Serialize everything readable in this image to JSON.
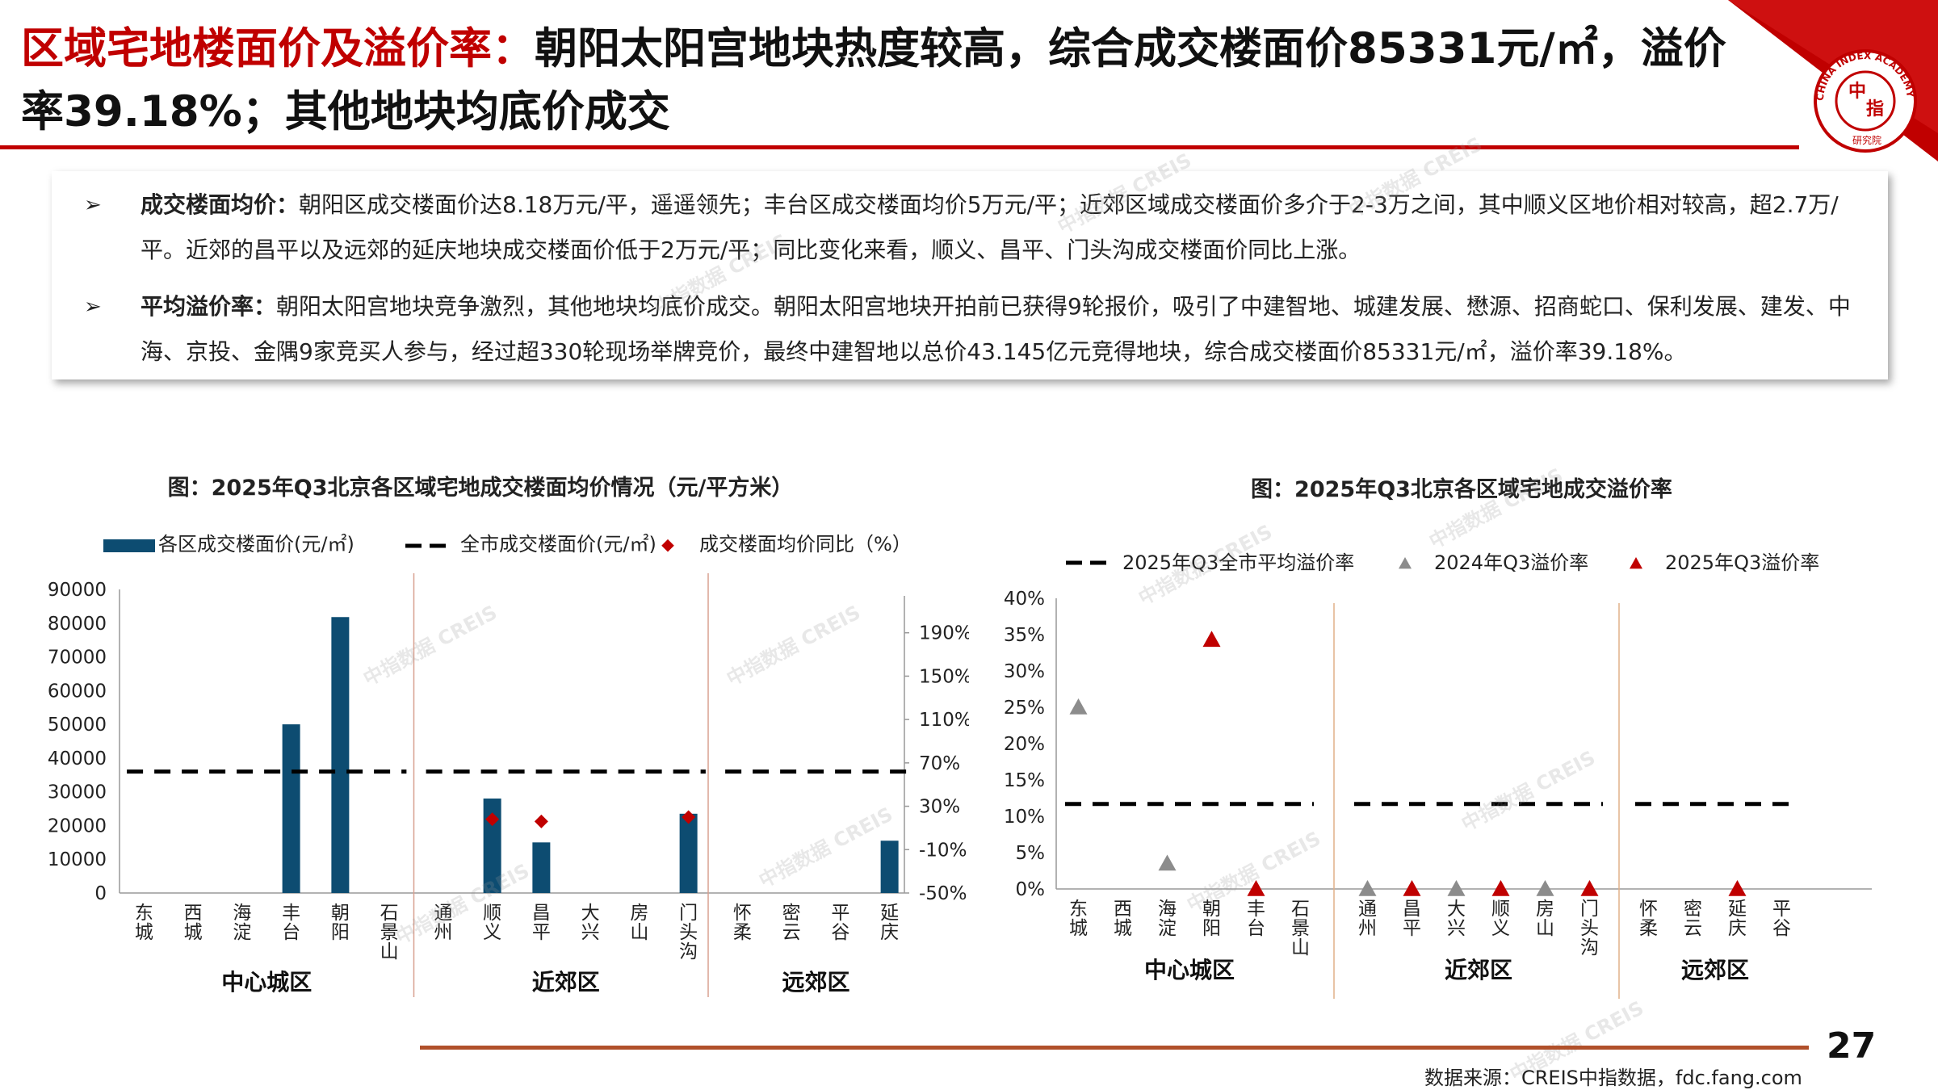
{
  "header": {
    "title_red": "区域宅地楼面价及溢价率：",
    "title_rest": "朝阳太阳宫地块热度较高，综合成交楼面价85331元/㎡，溢价率39.18%；其他地块均底价成交"
  },
  "logo": {
    "ring_text": "CHINA INDEX ACADEMY",
    "center_top": "中",
    "center_bottom": "指",
    "bottom_text": "研究院"
  },
  "colors": {
    "brand_red": "#c00000",
    "bar_blue": "#0d4c71",
    "gray_marker": "#8c8c8c",
    "diamond_red": "#c00000"
  },
  "bullets": [
    {
      "label": "成交楼面均价：",
      "text": "朝阳区成交楼面价达8.18万元/平，遥遥领先；丰台区成交楼面均价5万元/平；近郊区域成交楼面价多介于2-3万之间，其中顺义区地价相对较高，超2.7万/平。近郊的昌平以及远郊的延庆地块成交楼面价低于2万元/平；同比变化来看，顺义、昌平、门头沟成交楼面价同比上涨。"
    },
    {
      "label": "平均溢价率：",
      "text": "朝阳太阳宫地块竞争激烈，其他地块均底价成交。朝阳太阳宫地块开拍前已获得9轮报价，吸引了中建智地、城建发展、懋源、招商蛇口、保利发展、建发、中海、京投、金隅9家竞买人参与，经过超330轮现场举牌竞价，最终中建智地以总价43.145亿元竞得地块，综合成交楼面价85331元/㎡，溢价率39.18%。"
    }
  ],
  "watermark": "中指数据 CREIS",
  "chart_data": [
    {
      "type": "bar",
      "title": "图：2025年Q3北京各区域宅地成交楼面均价情况（元/平方米）",
      "legend": [
        "各区成交楼面价(元/㎡)",
        "全市成交楼面价(元/㎡)",
        "成交楼面均价同比（%）"
      ],
      "categories": [
        "东城",
        "西城",
        "海淀",
        "丰台",
        "朝阳",
        "石景山",
        "通州",
        "顺义",
        "昌平",
        "大兴",
        "房山",
        "门头沟",
        "怀柔",
        "密云",
        "平谷",
        "延庆"
      ],
      "groups": [
        {
          "name": "中心城区",
          "start": 0,
          "count": 6
        },
        {
          "name": "近郊区",
          "start": 6,
          "count": 6
        },
        {
          "name": "远郊区",
          "start": 12,
          "count": 4
        }
      ],
      "values": [
        null,
        null,
        null,
        50000,
        81800,
        null,
        null,
        28000,
        15000,
        null,
        null,
        23500,
        null,
        null,
        null,
        15500
      ],
      "city_avg": 36000,
      "yoy_percent": [
        null,
        null,
        null,
        null,
        null,
        null,
        null,
        18,
        16,
        null,
        null,
        20,
        null,
        null,
        null,
        null
      ],
      "ylim": [
        0,
        90000
      ],
      "y_ticks": [
        "90000",
        "80000",
        "70000",
        "60000",
        "50000",
        "40000",
        "30000",
        "20000",
        "10000",
        "0"
      ],
      "y2lim": [
        -50,
        230
      ],
      "y2_ticks": [
        "190%",
        "150%",
        "110%",
        "70%",
        "30%",
        "-10%",
        "-50%"
      ]
    },
    {
      "type": "scatter",
      "title": "图：2025年Q3北京各区域宅地成交溢价率",
      "legend": [
        "2025年Q3全市平均溢价率",
        "2024年Q3溢价率",
        "2025年Q3溢价率"
      ],
      "categories": [
        "东城",
        "西城",
        "海淀",
        "朝阳",
        "丰台",
        "石景山",
        "通州",
        "昌平",
        "大兴",
        "顺义",
        "房山",
        "门头沟",
        "怀柔",
        "密云",
        "延庆",
        "平谷"
      ],
      "groups": [
        {
          "name": "中心城区",
          "start": 0,
          "count": 6
        },
        {
          "name": "近郊区",
          "start": 6,
          "count": 6
        },
        {
          "name": "远郊区",
          "start": 12,
          "count": 4
        }
      ],
      "series": [
        {
          "name": "2024年Q3溢价率",
          "values": [
            25,
            null,
            3.5,
            null,
            null,
            null,
            0,
            null,
            0,
            null,
            0,
            null,
            null,
            null,
            null,
            null
          ]
        },
        {
          "name": "2025年Q3溢价率",
          "values": [
            null,
            null,
            null,
            34.3,
            0,
            null,
            null,
            0,
            null,
            0,
            null,
            0,
            null,
            null,
            0,
            null
          ]
        }
      ],
      "city_avg": 11.7,
      "ylim": [
        0,
        40
      ],
      "y_ticks": [
        "40%",
        "35%",
        "30%",
        "25%",
        "20%",
        "15%",
        "10%",
        "5%",
        "0%"
      ]
    }
  ],
  "footer": {
    "page_number": "27",
    "source": "数据来源：CREIS中指数据，fdc.fang.com"
  }
}
